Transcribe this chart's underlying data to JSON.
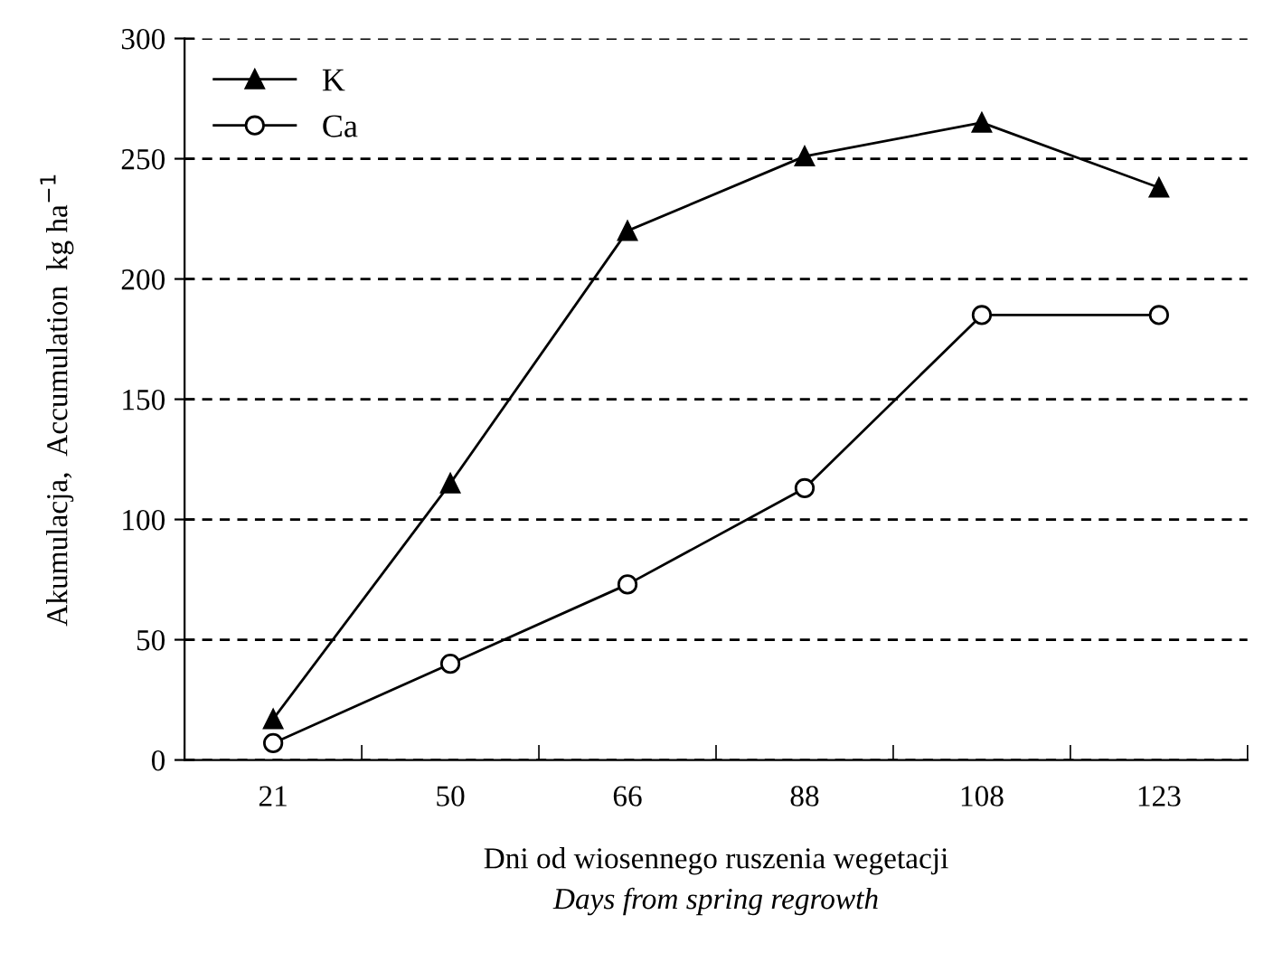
{
  "chart_data": {
    "type": "line",
    "xlabel": "Dni od wiosennego ruszenia wegetacji\nDays from spring regrowth",
    "ylabel": "Akumulacja,  Accumulation  kg ha$^{−1}$",
    "categories": [
      "21",
      "50",
      "66",
      "88",
      "108",
      "123"
    ],
    "series": [
      {
        "name": "K",
        "color": "#000000",
        "marker": "triangle",
        "values": [
          17,
          115,
          220,
          251,
          265,
          238
        ]
      },
      {
        "name": "Ca",
        "color": "#000000",
        "marker": "circle",
        "values": [
          7,
          40,
          73,
          113,
          185,
          185
        ]
      }
    ],
    "ylim": [
      0,
      300
    ],
    "yticks": [
      0,
      50,
      100,
      150,
      200,
      250,
      300
    ],
    "grid": "y",
    "legend": "top left",
    "line_style": "solid"
  }
}
